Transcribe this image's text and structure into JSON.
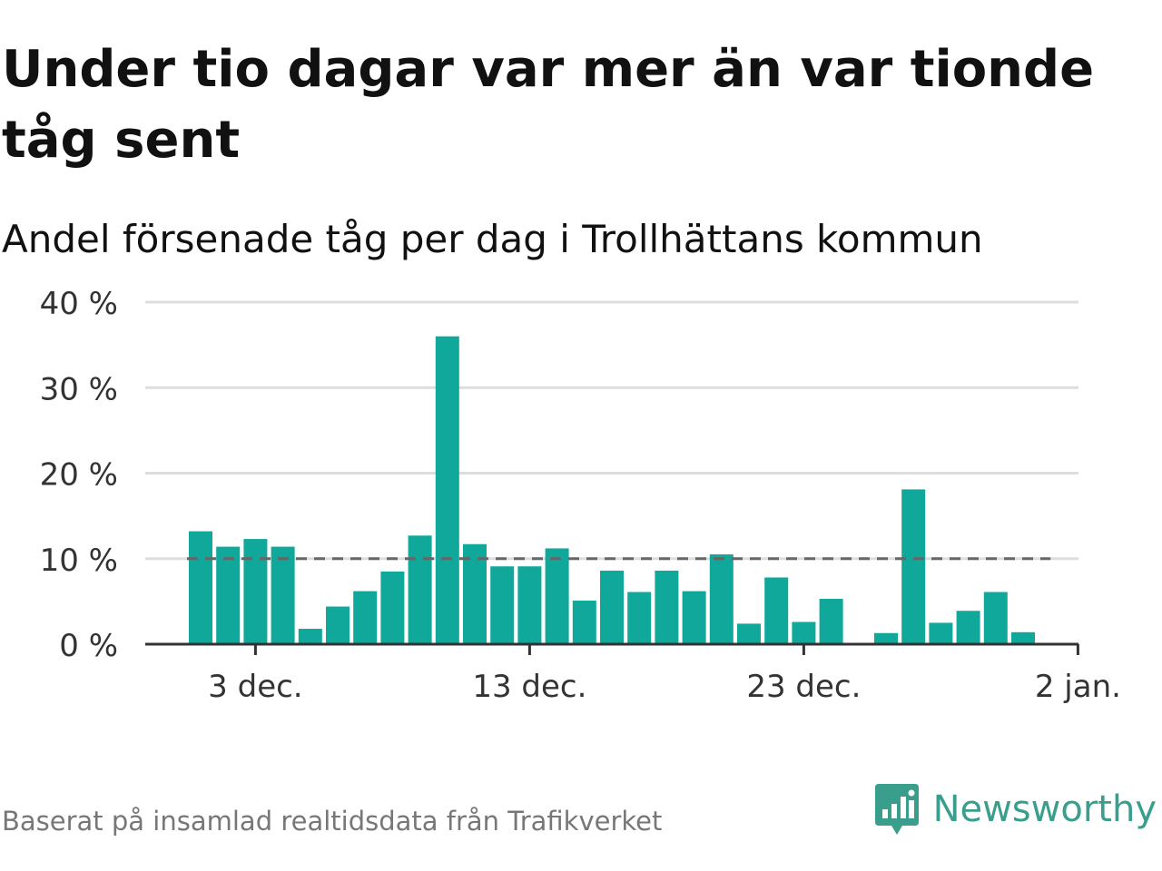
{
  "header": {
    "title": "Under tio dagar var mer än var tionde tåg sent",
    "subtitle": "Andel försenade tåg per dag i Trollhättans kommun"
  },
  "footer": {
    "source": "Baserat på insamlad realtidsdata från Trafikverket",
    "brand": "Newsworthy",
    "brand_icon": "newsworthy-logo-icon"
  },
  "colors": {
    "bar": "#0fa89a",
    "reference_line": "#666666",
    "gridline": "#dddddd",
    "axis": "#333333",
    "brand": "#3a9e8d"
  },
  "chart_data": {
    "type": "bar",
    "title": "Under tio dagar var mer än var tionde tåg sent",
    "subtitle": "Andel försenade tåg per dag i Trollhättans kommun",
    "xlabel": "",
    "ylabel": "",
    "categories": [
      "2024-12-01",
      "2024-12-02",
      "2024-12-03",
      "2024-12-04",
      "2024-12-05",
      "2024-12-06",
      "2024-12-07",
      "2024-12-08",
      "2024-12-09",
      "2024-12-10",
      "2024-12-11",
      "2024-12-12",
      "2024-12-13",
      "2024-12-14",
      "2024-12-15",
      "2024-12-16",
      "2024-12-17",
      "2024-12-18",
      "2024-12-19",
      "2024-12-20",
      "2024-12-21",
      "2024-12-22",
      "2024-12-23",
      "2024-12-24",
      "2024-12-25",
      "2024-12-26",
      "2024-12-27",
      "2024-12-28",
      "2024-12-29",
      "2024-12-30",
      "2024-12-31",
      "2025-01-01"
    ],
    "values": [
      13.2,
      11.4,
      12.3,
      11.4,
      1.8,
      4.4,
      6.2,
      8.5,
      12.7,
      36.0,
      11.7,
      9.1,
      9.1,
      11.2,
      5.1,
      8.6,
      6.1,
      8.6,
      6.2,
      10.5,
      2.4,
      7.8,
      2.6,
      5.3,
      null,
      1.3,
      18.1,
      2.5,
      3.9,
      6.1,
      1.4,
      null
    ],
    "unit": "%",
    "ylim": [
      0,
      40
    ],
    "yticks": [
      0,
      10,
      20,
      30,
      40
    ],
    "ytick_labels": [
      "0 %",
      "10 %",
      "20 %",
      "30 %",
      "40 %"
    ],
    "xticks": [
      "2024-12-03",
      "2024-12-13",
      "2024-12-23",
      "2025-01-02"
    ],
    "xtick_labels": [
      "3 dec.",
      "13 dec.",
      "23 dec.",
      "2 jan."
    ],
    "reference_line": 10,
    "grid": true
  }
}
